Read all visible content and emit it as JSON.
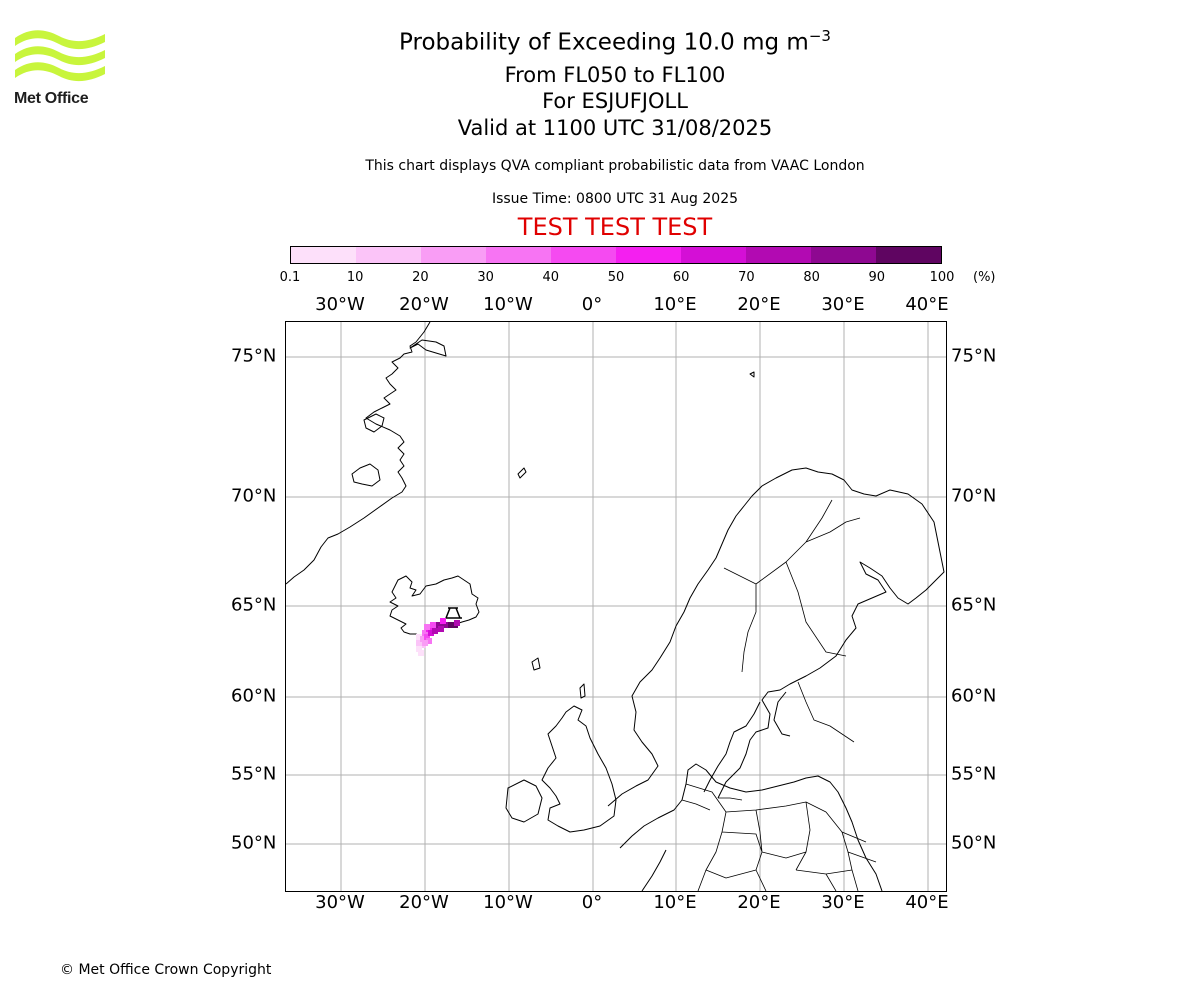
{
  "logo": {
    "text": "Met Office"
  },
  "title": {
    "main": "Probability of Exceeding 10.0 mg m",
    "main_superscript": "−3",
    "flight_levels": "From FL050 to FL100",
    "volcano": "For ESJUFJOLL",
    "valid": "Valid at 1100 UTC 31/08/2025",
    "description": "This chart displays QVA compliant probabilistic data from VAAC London",
    "issue_time": "Issue Time: 0800 UTC 31 Aug 2025",
    "test_banner": "TEST TEST TEST"
  },
  "colorbar": {
    "ticks": [
      "0.1",
      "10",
      "20",
      "30",
      "40",
      "50",
      "60",
      "70",
      "80",
      "90",
      "100"
    ],
    "unit": "(%)",
    "colors": [
      "#fde0fa",
      "#fbc4f8",
      "#f99df5",
      "#f774f3",
      "#f54af1",
      "#f41ff0",
      "#d40fd6",
      "#b20ab2",
      "#8e0891",
      "#5f0561"
    ]
  },
  "map": {
    "lon_labels": [
      "30°W",
      "20°W",
      "10°W",
      "0°",
      "10°E",
      "20°E",
      "30°E",
      "40°E"
    ],
    "lat_labels": [
      "75°N",
      "70°N",
      "65°N",
      "60°N",
      "55°N",
      "50°N"
    ],
    "gridline_color": "#b0b0b0",
    "coast_color": "#000000"
  },
  "footer": {
    "copyright": "© Met Office Crown Copyright"
  }
}
